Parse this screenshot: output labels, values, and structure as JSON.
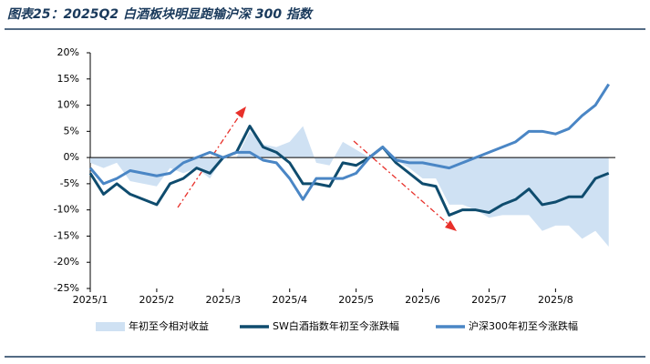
{
  "chart_data": {
    "type": "line",
    "title": "图表25：2025Q2 白酒板块明显跑输沪深 300 指数",
    "x": [
      0,
      0.2,
      0.4,
      0.6,
      0.8,
      1.0,
      1.2,
      1.4,
      1.6,
      1.8,
      2.0,
      2.2,
      2.4,
      2.6,
      2.8,
      3.0,
      3.2,
      3.4,
      3.6,
      3.8,
      4.0,
      4.2,
      4.4,
      4.6,
      4.8,
      5.0,
      5.2,
      5.4,
      5.6,
      5.8,
      6.0,
      6.2,
      6.4,
      6.6,
      6.8,
      7.0,
      7.2,
      7.4,
      7.6,
      7.8
    ],
    "xlim": [
      0,
      7.9
    ],
    "xticks": [
      {
        "value": 0,
        "label": "2025/1"
      },
      {
        "value": 1,
        "label": "2025/2"
      },
      {
        "value": 2,
        "label": "2025/3"
      },
      {
        "value": 3,
        "label": "2025/4"
      },
      {
        "value": 4,
        "label": "2025/5"
      },
      {
        "value": 5,
        "label": "2025/6"
      },
      {
        "value": 6,
        "label": "2025/7"
      },
      {
        "value": 7,
        "label": "2025/8"
      }
    ],
    "ylim": [
      -25,
      20
    ],
    "yticks": [
      {
        "value": -25,
        "label": "-25%"
      },
      {
        "value": -20,
        "label": "-20%"
      },
      {
        "value": -15,
        "label": "-15%"
      },
      {
        "value": -10,
        "label": "-10%"
      },
      {
        "value": -5,
        "label": "-5%"
      },
      {
        "value": 0,
        "label": "0%"
      },
      {
        "value": 5,
        "label": "5%"
      },
      {
        "value": 10,
        "label": "10%"
      },
      {
        "value": 15,
        "label": "15%"
      },
      {
        "value": 20,
        "label": "20%"
      }
    ],
    "series": [
      {
        "name": "年初至今相对收益",
        "style": "area",
        "color": "#cfe1f3",
        "values": [
          -1,
          -2,
          -1,
          -4.5,
          -5,
          -5.5,
          -2,
          -3,
          -2,
          -4,
          0,
          0,
          5,
          2.5,
          2,
          3,
          6,
          -1,
          -1.5,
          3,
          1.5,
          0,
          0,
          -0.5,
          -2,
          -4,
          -4,
          -9,
          -9,
          -10,
          -11.5,
          -11,
          -11,
          -11,
          -14,
          -13,
          -13,
          -15.5,
          -14,
          -17
        ]
      },
      {
        "name": "SW白酒指数年初至今涨跌幅",
        "style": "line",
        "color": "#0f4c6e",
        "values": [
          -3,
          -7,
          -5,
          -7,
          -8,
          -9,
          -5,
          -4,
          -2,
          -3,
          0,
          1,
          6,
          2,
          1,
          -1,
          -5,
          -5,
          -5.5,
          -1,
          -1.5,
          0,
          2,
          -1,
          -3,
          -5,
          -5.5,
          -11,
          -10,
          -10,
          -10.5,
          -9,
          -8,
          -6,
          -9,
          -8.5,
          -7.5,
          -7.5,
          -4,
          -3
        ]
      },
      {
        "name": "沪深300年初至今涨跌幅",
        "style": "line",
        "color": "#4a86c5",
        "values": [
          -2,
          -5,
          -4,
          -2.5,
          -3,
          -3.5,
          -3,
          -1,
          0,
          1,
          0,
          1,
          1,
          -0.5,
          -1,
          -4,
          -8,
          -4,
          -4,
          -4,
          -3,
          0,
          2,
          -0.5,
          -1,
          -1,
          -1.5,
          -2,
          -1,
          0,
          1,
          2,
          3,
          5,
          5,
          4.5,
          5.5,
          8,
          10,
          14
        ]
      }
    ]
  }
}
